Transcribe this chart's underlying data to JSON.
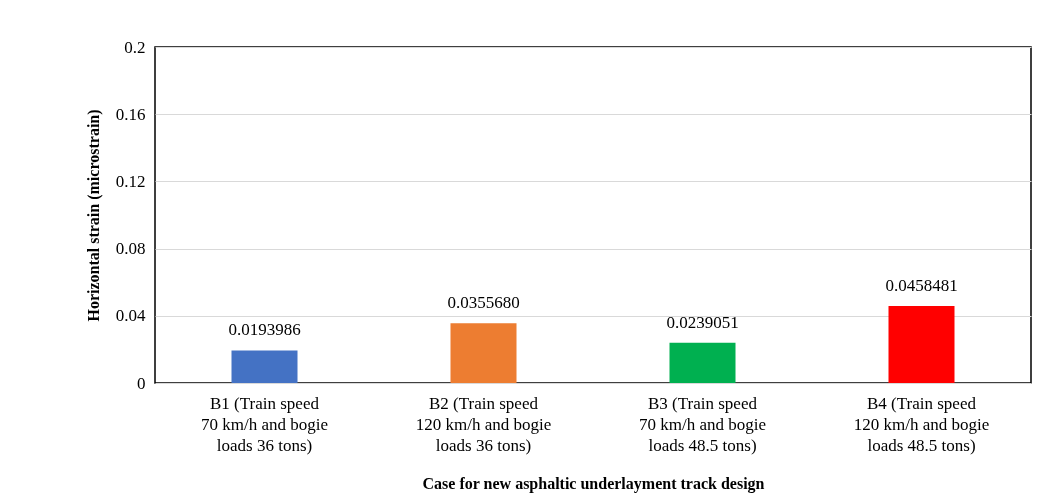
{
  "chart_data": {
    "type": "bar",
    "xlabel": "Case for new asphaltic underlayment track design",
    "ylabel": "Horizontal strain (microstrain)",
    "categories": [
      "B1 (Train speed\n70 km/h and bogie\nloads 36 tons)",
      "B2 (Train speed\n120 km/h and bogie\nloads 36 tons)",
      "B3 (Train speed\n70 km/h and bogie\nloads 48.5 tons)",
      "B4 (Train speed\n120 km/h and bogie\nloads 48.5 tons)"
    ],
    "values": [
      0.0193986,
      0.035568,
      0.0239051,
      0.0458481
    ],
    "value_labels": [
      "0.0193986",
      "0.0355680",
      "0.0239051",
      "0.0458481"
    ],
    "colors": [
      "#4472c4",
      "#ed7d31",
      "#00b050",
      "#ff0000"
    ],
    "ylim": [
      0,
      0.2
    ],
    "yticks": [
      0,
      0.04,
      0.08,
      0.12,
      0.16,
      0.2
    ],
    "grid": "y"
  }
}
